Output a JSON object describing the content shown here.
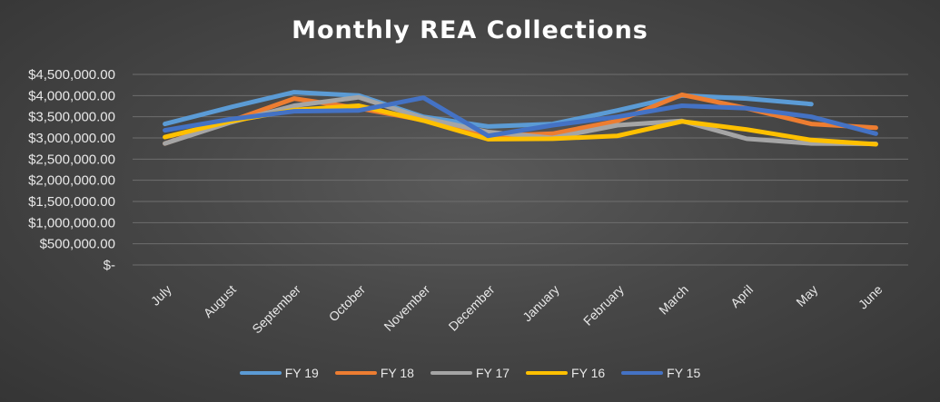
{
  "chart_data": {
    "type": "line",
    "title": "Monthly REA Collections",
    "categories": [
      "July",
      "August",
      "September",
      "October",
      "November",
      "December",
      "January",
      "February",
      "March",
      "April",
      "May",
      "June"
    ],
    "y_tick_labels": [
      "$-",
      "$500,000.00",
      "$1,000,000.00",
      "$1,500,000.00",
      "$2,000,000.00",
      "$2,500,000.00",
      "$3,000,000.00",
      "$3,500,000.00",
      "$4,000,000.00",
      "$4,500,000.00"
    ],
    "ylim": [
      0,
      4500000
    ],
    "grid": true,
    "legend_position": "bottom",
    "series": [
      {
        "name": "FY 19",
        "color": "#5b9bd5",
        "values": [
          3330000,
          3720000,
          4080000,
          4000000,
          3500000,
          3270000,
          3330000,
          3650000,
          4000000,
          3930000,
          3800000,
          null
        ]
      },
      {
        "name": "FY 18",
        "color": "#ed7d31",
        "values": [
          2870000,
          3390000,
          3930000,
          3700000,
          3420000,
          3040000,
          3100000,
          3400000,
          4020000,
          3700000,
          3330000,
          3240000
        ]
      },
      {
        "name": "FY 17",
        "color": "#a5a5a5",
        "values": [
          2870000,
          3360000,
          3760000,
          3960000,
          3470000,
          3140000,
          3000000,
          3300000,
          3400000,
          2980000,
          2870000,
          2860000
        ]
      },
      {
        "name": "FY 16",
        "color": "#ffc000",
        "values": [
          3020000,
          3390000,
          3660000,
          3760000,
          3410000,
          2970000,
          2980000,
          3050000,
          3390000,
          3200000,
          2950000,
          2850000
        ]
      },
      {
        "name": "FY 15",
        "color": "#4472c4",
        "values": [
          3180000,
          3440000,
          3630000,
          3650000,
          3950000,
          3050000,
          3300000,
          3500000,
          3760000,
          3700000,
          3500000,
          3100000
        ]
      }
    ]
  }
}
